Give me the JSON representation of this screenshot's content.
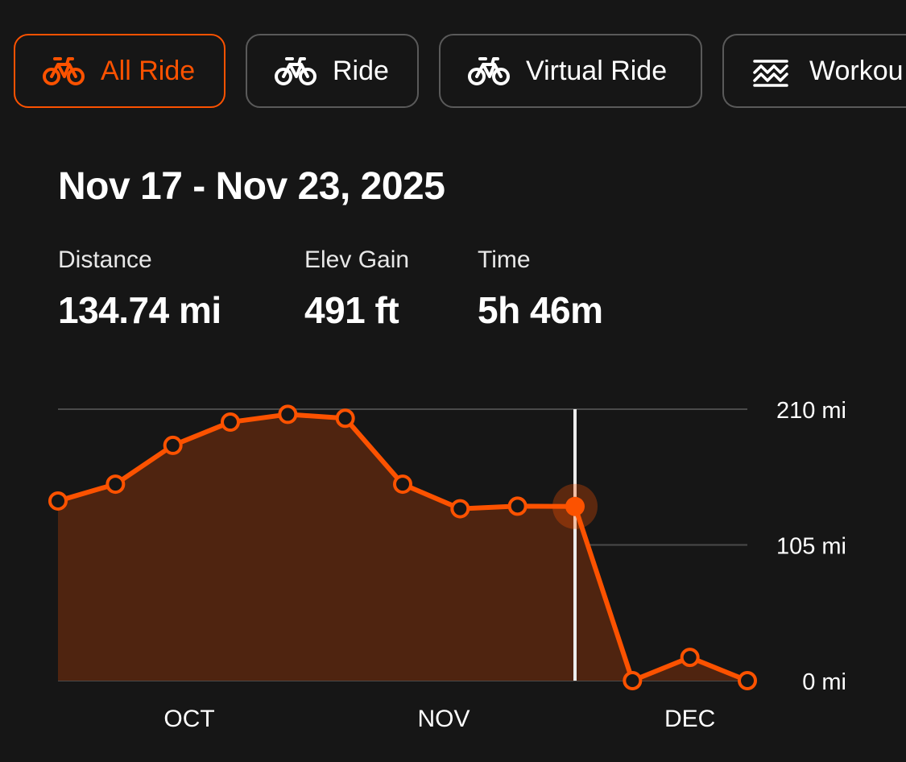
{
  "filters": [
    {
      "label": "All Ride",
      "icon": "bike-icon",
      "active": true
    },
    {
      "label": "Ride",
      "icon": "bike-icon",
      "active": false
    },
    {
      "label": "Virtual Ride",
      "icon": "bike-icon",
      "active": false
    },
    {
      "label": "Workou",
      "icon": "workout-waves-icon",
      "active": false
    }
  ],
  "summary": {
    "title": "Nov 17 - Nov 23, 2025",
    "stats": [
      {
        "label": "Distance",
        "value": "134.74 mi"
      },
      {
        "label": "Elev Gain",
        "value": "491 ft"
      },
      {
        "label": "Time",
        "value": "5h 46m"
      }
    ]
  },
  "colors": {
    "accent": "#fc5200",
    "background": "#161616",
    "fill": "#4f2410",
    "grid": "#4a4a4a"
  },
  "chart_data": {
    "type": "area",
    "x": [
      "2025-09-15",
      "2025-09-22",
      "2025-09-29",
      "2025-10-06",
      "2025-10-13",
      "2025-10-20",
      "2025-10-27",
      "2025-11-03",
      "2025-11-10",
      "2025-11-17",
      "2025-11-24",
      "2025-12-01",
      "2025-12-08"
    ],
    "series": [
      {
        "values": [
          139,
          152,
          182,
          200,
          206,
          203,
          152,
          133,
          135,
          134.74,
          0,
          18,
          0
        ]
      }
    ],
    "selected_index": 9,
    "ylim": [
      0,
      210
    ],
    "yticks": [
      0,
      105,
      210
    ],
    "ytick_labels": [
      "0 mi",
      "105 mi",
      "210 mi"
    ],
    "xtick_labels": [
      "OCT",
      "NOV",
      "DEC"
    ],
    "grid": true
  }
}
